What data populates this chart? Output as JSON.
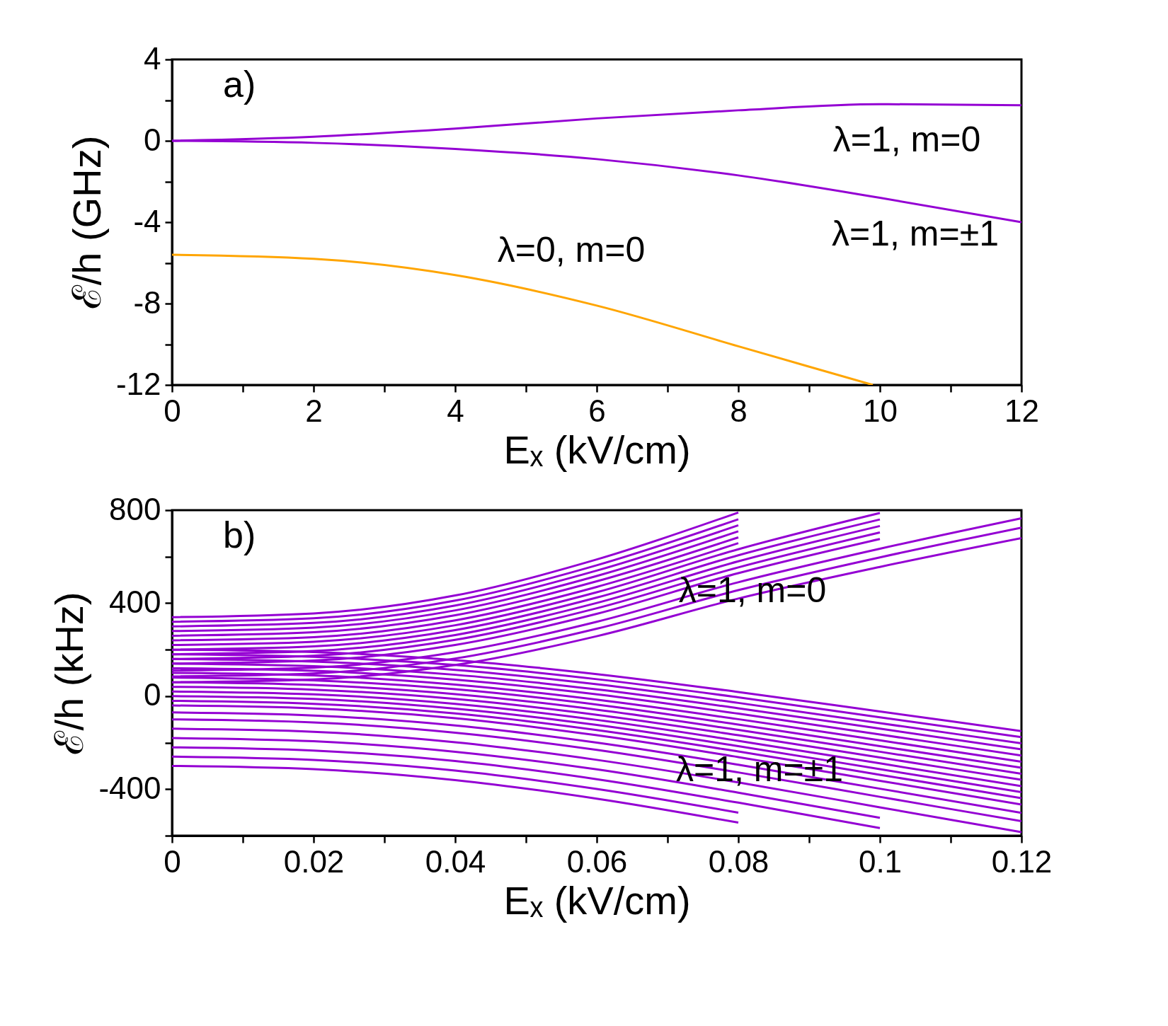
{
  "chart_data": [
    {
      "type": "line",
      "xlabel": "Eₓ (kV/cm)",
      "ylabel": "ℰ/h (GHz)",
      "x": [
        0,
        2,
        4,
        6,
        8,
        10,
        12
      ],
      "series": [
        {
          "color": "#9400d3",
          "values": [
            0,
            0.2,
            0.6,
            1.1,
            1.5,
            1.8,
            1.75
          ]
        },
        {
          "color": "#9400d3",
          "values": [
            0,
            -0.1,
            -0.4,
            -0.9,
            -1.7,
            -2.8,
            -4.0
          ]
        },
        {
          "color": "#ffa500",
          "x": [
            0,
            2,
            4,
            6,
            8,
            9.9
          ],
          "values": [
            -5.6,
            -5.8,
            -6.6,
            -8.1,
            -10.1,
            -12
          ]
        }
      ],
      "xlim": [
        0,
        12
      ],
      "ylim": [
        -12,
        4
      ],
      "xticks": [
        0,
        {
          "value": 1,
          "label": null
        },
        2,
        {
          "value": 3,
          "label": null
        },
        4,
        {
          "value": 5,
          "label": null
        },
        6,
        {
          "value": 7,
          "label": null
        },
        8,
        {
          "value": 9,
          "label": null
        },
        10,
        {
          "value": 11,
          "label": null
        },
        12
      ],
      "yticks": [
        -12,
        {
          "value": -10,
          "label": null
        },
        -8,
        {
          "value": -6,
          "label": null
        },
        -4,
        {
          "value": -2,
          "label": null
        },
        0,
        {
          "value": 2,
          "label": null
        },
        4
      ],
      "grid": false,
      "legend": false,
      "annotations": [
        "a)",
        "λ=1, m=0",
        "λ=1, m=±1",
        "λ=0, m=0"
      ]
    },
    {
      "type": "line",
      "xlabel": "Eₓ (kV/cm)",
      "ylabel": "ℰ/h (kHz)",
      "x": [
        0,
        0.02,
        0.04,
        0.06,
        0.08,
        0.1,
        0.12
      ],
      "series": [
        {
          "color": "#9400d3",
          "values": [
            340,
            356,
            433,
            588,
            790,
            null,
            null
          ]
        },
        {
          "color": "#9400d3",
          "values": [
            320,
            335,
            411,
            563,
            761,
            null,
            null
          ]
        },
        {
          "color": "#9400d3",
          "values": [
            300,
            315,
            390,
            540,
            735,
            null,
            null
          ]
        },
        {
          "color": "#9400d3",
          "values": [
            280,
            295,
            369,
            517,
            709,
            null,
            null
          ]
        },
        {
          "color": "#9400d3",
          "values": [
            260,
            275,
            348,
            494,
            683,
            null,
            null
          ]
        },
        {
          "color": "#9400d3",
          "values": [
            240,
            254,
            326,
            470,
            658,
            null,
            null
          ]
        },
        {
          "color": "#9400d3",
          "values": [
            220,
            234,
            305,
            447,
            632,
            788,
            null
          ]
        },
        {
          "color": "#9400d3",
          "values": [
            200,
            214,
            284,
            424,
            606,
            760,
            null
          ]
        },
        {
          "color": "#9400d3",
          "values": [
            180,
            194,
            263,
            401,
            580,
            732,
            null
          ]
        },
        {
          "color": "#9400d3",
          "values": [
            160,
            174,
            242,
            378,
            554,
            704,
            null
          ]
        },
        {
          "color": "#9400d3",
          "values": [
            140,
            153,
            220,
            354,
            529,
            676,
            null
          ]
        },
        {
          "color": "#9400d3",
          "values": [
            110,
            123,
            189,
            320,
            490,
            634,
            765
          ]
        },
        {
          "color": "#9400d3",
          "values": [
            85,
            98,
            162,
            290,
            456,
            597,
            725
          ]
        },
        {
          "color": "#9400d3",
          "values": [
            60,
            72,
            134,
            258,
            420,
            556,
            680
          ]
        },
        {
          "color": "#9400d3",
          "values": [
            200,
            190,
            155,
            95,
            18,
            -66,
            -150
          ]
        },
        {
          "color": "#9400d3",
          "values": [
            180,
            169,
            134,
            73,
            -5,
            -91,
            -176
          ]
        },
        {
          "color": "#9400d3",
          "values": [
            160,
            149,
            113,
            51,
            -29,
            -116,
            -203
          ]
        },
        {
          "color": "#9400d3",
          "values": [
            140,
            129,
            92,
            29,
            -52,
            -140,
            -229
          ]
        },
        {
          "color": "#9400d3",
          "values": [
            120,
            109,
            71,
            8,
            -75,
            -165,
            -255
          ]
        },
        {
          "color": "#9400d3",
          "values": [
            100,
            89,
            50,
            -15,
            -99,
            -190,
            -282
          ]
        },
        {
          "color": "#9400d3",
          "values": [
            80,
            68,
            30,
            -36,
            -122,
            -215,
            -308
          ]
        },
        {
          "color": "#9400d3",
          "values": [
            60,
            48,
            9,
            -58,
            -145,
            -239,
            -334
          ]
        },
        {
          "color": "#9400d3",
          "values": [
            40,
            28,
            -12,
            -80,
            -168,
            -264,
            -360
          ]
        },
        {
          "color": "#9400d3",
          "values": [
            20,
            8,
            -33,
            -102,
            -192,
            -289,
            -387
          ]
        },
        {
          "color": "#9400d3",
          "values": [
            0,
            -12,
            -54,
            -124,
            -215,
            -314,
            -413
          ]
        },
        {
          "color": "#9400d3",
          "values": [
            -20,
            -33,
            -74,
            -146,
            -238,
            -338,
            -439
          ]
        },
        {
          "color": "#9400d3",
          "values": [
            -40,
            -53,
            -95,
            -168,
            -262,
            -364,
            -466
          ]
        },
        {
          "color": "#9400d3",
          "values": [
            -70,
            -83,
            -126,
            -200,
            -295,
            -398,
            -502
          ]
        },
        {
          "color": "#9400d3",
          "values": [
            -100,
            -113,
            -157,
            -231,
            -328,
            -433,
            -538
          ]
        },
        {
          "color": "#9400d3",
          "values": [
            -140,
            -153,
            -198,
            -274,
            -371,
            -478,
            -585
          ]
        },
        {
          "color": "#9400d3",
          "values": [
            -180,
            -194,
            -239,
            -315,
            -415,
            -523,
            null
          ]
        },
        {
          "color": "#9400d3",
          "values": [
            -220,
            -234,
            -279,
            -357,
            -458,
            -567,
            null
          ]
        },
        {
          "color": "#9400d3",
          "values": [
            -260,
            -274,
            -320,
            -399,
            -501,
            null,
            null
          ]
        },
        {
          "color": "#9400d3",
          "values": [
            -300,
            -314,
            -361,
            -441,
            -544,
            null,
            null
          ]
        }
      ],
      "xlim": [
        0,
        0.12
      ],
      "ylim": [
        -600,
        800
      ],
      "xticks": [
        0,
        {
          "value": 0.01,
          "label": null
        },
        0.02,
        {
          "value": 0.03,
          "label": null
        },
        0.04,
        {
          "value": 0.05,
          "label": null
        },
        0.06,
        {
          "value": 0.07,
          "label": null
        },
        0.08,
        {
          "value": 0.09,
          "label": null
        },
        0.1,
        {
          "value": 0.11,
          "label": null
        },
        0.12
      ],
      "yticks": [
        {
          "value": -600,
          "label": null
        },
        -400,
        {
          "value": -200,
          "label": null
        },
        0,
        {
          "value": 200,
          "label": null
        },
        400,
        {
          "value": 600,
          "label": null
        },
        800
      ],
      "grid": false,
      "legend": false,
      "annotations": [
        "b)",
        {
          "text": "λ=1, m=0",
          "x": 0.082,
          "y": 450
        },
        {
          "text": "λ=1, m=±1",
          "x": 0.083,
          "y": -320
        }
      ]
    }
  ]
}
